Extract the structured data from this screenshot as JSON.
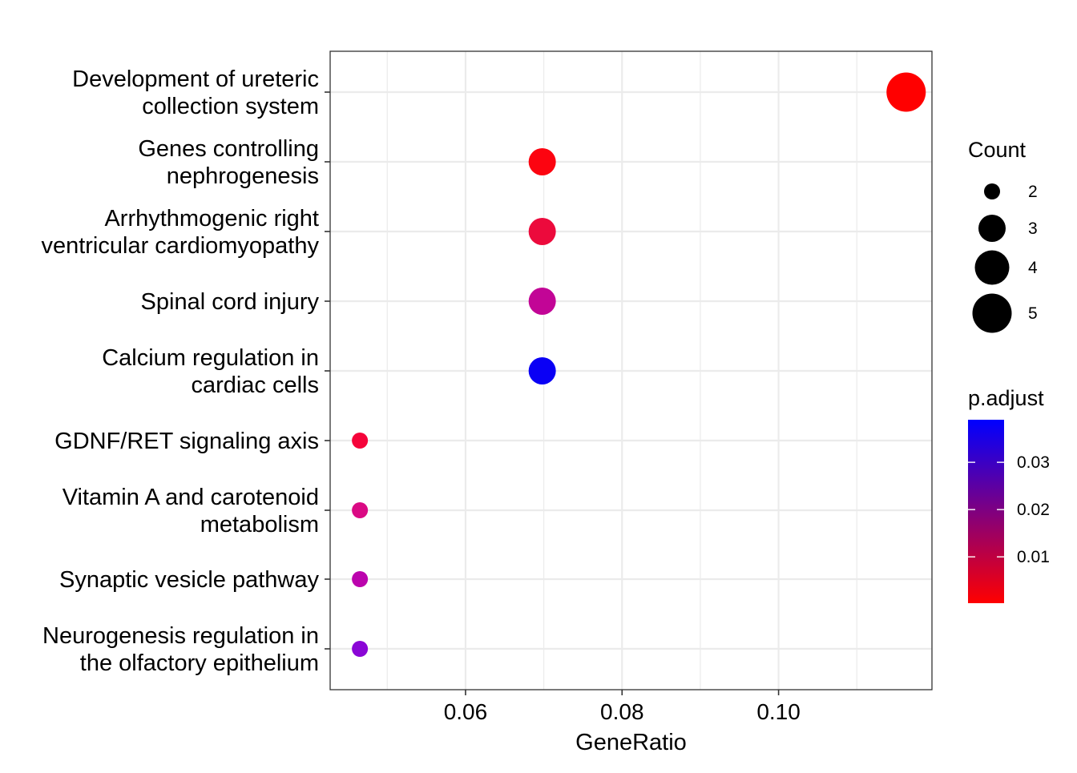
{
  "chart_data": {
    "type": "scatter",
    "title": "",
    "xlabel": "GeneRatio",
    "ylabel": "",
    "xlim": [
      0.0427,
      0.1196
    ],
    "x_ticks": [
      0.06,
      0.08,
      0.1
    ],
    "x_tick_labels": [
      "0.06",
      "0.08",
      "0.10"
    ],
    "grid": true,
    "categories": [
      [
        "Development of ureteric",
        "collection system"
      ],
      [
        "Genes controlling",
        "nephrogenesis"
      ],
      [
        "Arrhythmogenic right",
        "ventricular cardiomyopathy"
      ],
      [
        "Spinal cord injury"
      ],
      [
        "Calcium regulation in",
        "cardiac cells"
      ],
      [
        "GDNF/RET signaling axis"
      ],
      [
        "Vitamin A and carotenoid",
        "metabolism"
      ],
      [
        "Synaptic vesicle pathway"
      ],
      [
        "Neurogenesis regulation in",
        "the olfactory epithelium"
      ]
    ],
    "points": [
      {
        "x": 0.1163,
        "count": 5,
        "p_adjust": 0.0002,
        "color": "#ff0000"
      },
      {
        "x": 0.0698,
        "count": 3,
        "p_adjust": 0.0015,
        "color": "#fc0410"
      },
      {
        "x": 0.0698,
        "count": 3,
        "p_adjust": 0.0065,
        "color": "#ec0a3c"
      },
      {
        "x": 0.0698,
        "count": 3,
        "p_adjust": 0.026,
        "color": "#c20596"
      },
      {
        "x": 0.0698,
        "count": 3,
        "p_adjust": 0.039,
        "color": "#0a00f5"
      },
      {
        "x": 0.0465,
        "count": 2,
        "p_adjust": 0.004,
        "color": "#f5043a"
      },
      {
        "x": 0.0465,
        "count": 2,
        "p_adjust": 0.015,
        "color": "#da0a84"
      },
      {
        "x": 0.0465,
        "count": 2,
        "p_adjust": 0.025,
        "color": "#bb04ad"
      },
      {
        "x": 0.0465,
        "count": 2,
        "p_adjust": 0.032,
        "color": "#8a06d6"
      }
    ],
    "legend_size": {
      "title": "Count",
      "entries": [
        {
          "label": "2",
          "value": 2
        },
        {
          "label": "3",
          "value": 3
        },
        {
          "label": "4",
          "value": 4
        },
        {
          "label": "5",
          "value": 5
        }
      ]
    },
    "legend_color": {
      "title": "p.adjust",
      "ticks": [
        {
          "label": "0.03",
          "value": 0.03
        },
        {
          "label": "0.02",
          "value": 0.02
        },
        {
          "label": "0.01",
          "value": 0.01
        }
      ],
      "range": [
        0.0002,
        0.039
      ],
      "low_color": "#ff0000",
      "high_color": "#0000ff"
    },
    "legend_position": "right"
  }
}
